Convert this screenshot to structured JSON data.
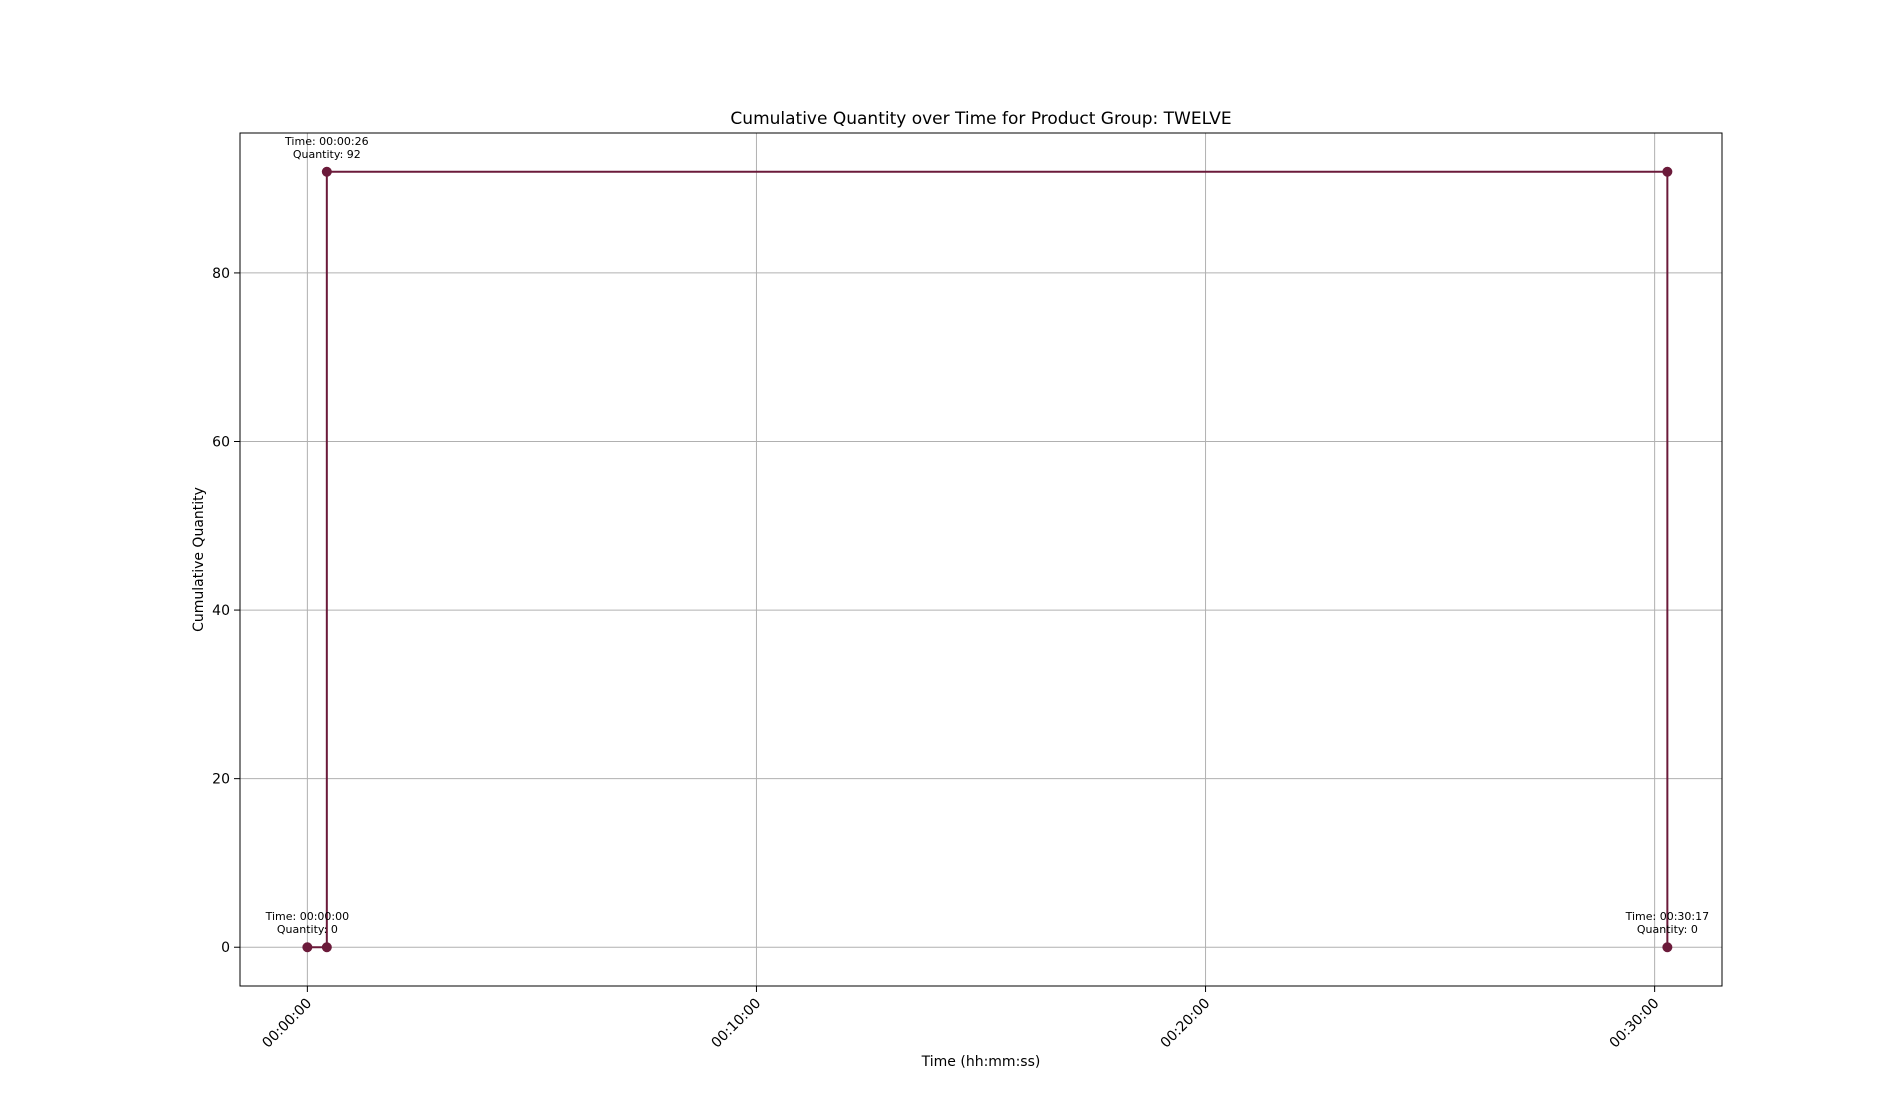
{
  "chart_data": {
    "type": "line",
    "title": "Cumulative Quantity over Time for Product Group: TWELVE",
    "xlabel": "Time (hh:mm:ss)",
    "ylabel": "Cumulative Quantity",
    "x_ticks": [
      "00:00:00",
      "00:10:00",
      "00:20:00",
      "00:30:00"
    ],
    "y_ticks": [
      "0",
      "20",
      "40",
      "60",
      "80"
    ],
    "xlim": [
      "-00:01:30",
      "00:31:30"
    ],
    "ylim": [
      -4.6,
      96.6
    ],
    "grid": true,
    "legend": "none",
    "series": [
      {
        "color": "#6b1a3a",
        "x": [
          "00:00:00",
          "00:00:26",
          "00:00:26",
          "00:30:17",
          "00:30:17"
        ],
        "y": [
          0,
          0,
          92,
          92,
          0
        ]
      }
    ],
    "annotations": [
      {
        "time_label": "Time: 00:00:00",
        "qty_label": "Quantity: 0",
        "x": "00:00:00",
        "y": 0
      },
      {
        "time_label": "Time: 00:00:26",
        "qty_label": "Quantity: 92",
        "x": "00:00:26",
        "y": 92
      },
      {
        "time_label": "Time: 00:30:17",
        "qty_label": "Quantity: 0",
        "x": "00:30:17",
        "y": 0
      }
    ]
  }
}
